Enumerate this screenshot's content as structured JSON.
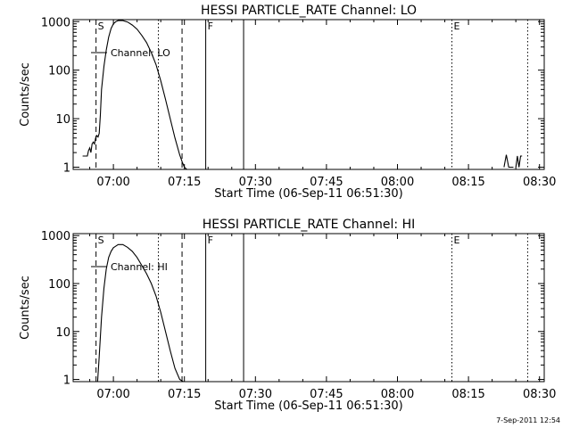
{
  "page": {
    "timestamp": "7-Sep-2011 12:54"
  },
  "chart_data": [
    {
      "type": "line",
      "title": "HESSI PARTICLE_RATE Channel: LO",
      "xlabel": "Start Time (06-Sep-11 06:51:30)",
      "ylabel": "Counts/sec",
      "ylog": true,
      "xlim": [
        "06:51:30",
        "08:31:00"
      ],
      "ylim": [
        0.9,
        1100
      ],
      "xticks": [
        "07:00",
        "07:15",
        "07:30",
        "07:45",
        "08:00",
        "08:15",
        "08:30"
      ],
      "yticks": [
        1,
        10,
        100,
        1000
      ],
      "ytick_labels": [
        "1",
        "10",
        "100",
        "1000"
      ],
      "legend": {
        "label": "Channel: LO",
        "placement": "top-left"
      },
      "markers": [
        {
          "time": "06:56:20",
          "style": "dashed",
          "label": "S"
        },
        {
          "time": "07:09:30",
          "style": "dotted",
          "label": ""
        },
        {
          "time": "07:14:30",
          "style": "dashed",
          "label": ""
        },
        {
          "time": "07:19:30",
          "style": "solid",
          "label": "F"
        },
        {
          "time": "07:27:30",
          "style": "solid",
          "label": ""
        },
        {
          "time": "08:11:30",
          "style": "dotted",
          "label": "E"
        },
        {
          "time": "08:27:30",
          "style": "dotted",
          "label": ""
        }
      ],
      "series": [
        {
          "segments": [
            {
              "x": [
                "06:53:30",
                "06:54:30",
                "06:54:45",
                "06:55:00",
                "06:55:15",
                "06:55:30",
                "06:55:45",
                "06:56:00",
                "06:56:15",
                "06:56:30",
                "06:56:45",
                "06:57:00",
                "06:57:15",
                "06:57:30",
                "06:58:00",
                "06:58:30",
                "06:59:00",
                "06:59:30",
                "07:00:00",
                "07:00:30",
                "07:01:00",
                "07:02:00",
                "07:03:00",
                "07:04:00",
                "07:05:00",
                "07:06:00",
                "07:07:00",
                "07:08:00",
                "07:09:00",
                "07:10:00",
                "07:11:00",
                "07:12:00",
                "07:13:00",
                "07:14:00",
                "07:14:30",
                "07:15:00",
                "07:15:30"
              ],
              "y": [
                1.7,
                1.7,
                2.2,
                2.5,
                2.0,
                3.0,
                3.3,
                3.0,
                4.0,
                4.5,
                4.2,
                5.0,
                12,
                40,
                120,
                260,
                480,
                720,
                900,
                1000,
                1050,
                1050,
                980,
                850,
                700,
                520,
                370,
                230,
                130,
                60,
                25,
                10,
                4,
                1.8,
                1.3,
                1.0,
                0.9
              ]
            },
            {
              "x": [
                "08:22:30",
                "08:23:00",
                "08:23:30",
                "08:24:00",
                "08:24:30"
              ],
              "y": [
                1.0,
                1.8,
                1.0,
                1.0,
                1.0
              ]
            },
            {
              "x": [
                "08:25:00",
                "08:25:20",
                "08:25:40",
                "08:26:00",
                "08:26:20"
              ],
              "y": [
                1.0,
                1.7,
                1.0,
                1.7,
                1.7
              ]
            }
          ]
        }
      ]
    },
    {
      "type": "line",
      "title": "HESSI PARTICLE_RATE Channel: HI",
      "xlabel": "Start Time (06-Sep-11 06:51:30)",
      "ylabel": "Counts/sec",
      "ylog": true,
      "xlim": [
        "06:51:30",
        "08:31:00"
      ],
      "ylim": [
        0.9,
        1100
      ],
      "xticks": [
        "07:00",
        "07:15",
        "07:30",
        "07:45",
        "08:00",
        "08:15",
        "08:30"
      ],
      "yticks": [
        1,
        10,
        100,
        1000
      ],
      "ytick_labels": [
        "1",
        "10",
        "100",
        "1000"
      ],
      "legend": {
        "label": "Channel: HI",
        "placement": "top-left"
      },
      "markers": [
        {
          "time": "06:56:20",
          "style": "dashed",
          "label": "S"
        },
        {
          "time": "07:09:30",
          "style": "dotted",
          "label": ""
        },
        {
          "time": "07:14:30",
          "style": "dashed",
          "label": ""
        },
        {
          "time": "07:19:30",
          "style": "solid",
          "label": "F"
        },
        {
          "time": "07:27:30",
          "style": "solid",
          "label": ""
        },
        {
          "time": "08:11:30",
          "style": "dotted",
          "label": "E"
        },
        {
          "time": "08:27:30",
          "style": "dotted",
          "label": ""
        }
      ],
      "series": [
        {
          "segments": [
            {
              "x": [
                "06:56:40",
                "06:57:00",
                "06:57:30",
                "06:58:00",
                "06:58:30",
                "06:59:00",
                "06:59:30",
                "07:00:00",
                "07:01:00",
                "07:02:00",
                "07:03:00",
                "07:04:00",
                "07:05:00",
                "07:06:00",
                "07:07:00",
                "07:08:00",
                "07:09:00",
                "07:10:00",
                "07:11:00",
                "07:12:00",
                "07:13:00",
                "07:14:00",
                "07:14:45"
              ],
              "y": [
                0.9,
                3,
                20,
                80,
                200,
                350,
                470,
                560,
                650,
                650,
                570,
                470,
                350,
                240,
                160,
                100,
                55,
                25,
                10,
                4,
                1.7,
                1.0,
                0.9
              ]
            }
          ]
        }
      ]
    }
  ]
}
